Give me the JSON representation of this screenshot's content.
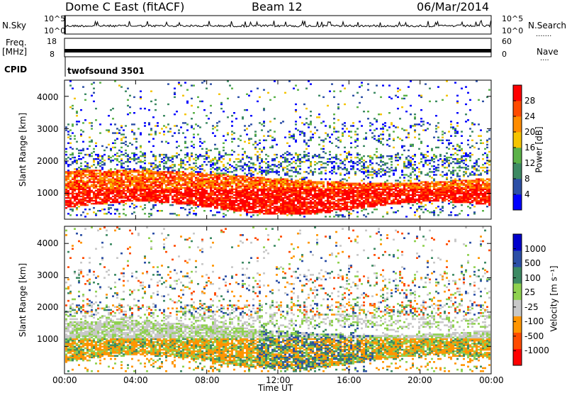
{
  "header": {
    "station": "Dome C East (fitACF)",
    "beam": "Beam 12",
    "date": "06/Mar/2014"
  },
  "top_panels": {
    "nsky_label": "N.Sky",
    "nsearch_label": "N.Search",
    "freq_label_line1": "Freq.",
    "freq_label_line2": "[MHz]",
    "nave_label": "Nave",
    "cpid_label": "CPID",
    "nsky_ticks": [
      "10^5",
      "10^0"
    ],
    "nsearch_ticks": [
      "10^5",
      "10^0"
    ],
    "freq_ticks": [
      "18",
      "8"
    ],
    "nave_ticks": [
      "60",
      "0"
    ],
    "cpid_value": "twofsound 3501"
  },
  "colors": {
    "power_scale": [
      "#0000ff",
      "#2c4fa6",
      "#3d8a63",
      "#5bb248",
      "#f5c400",
      "#ff8c00",
      "#ff4b00",
      "#ff0000"
    ],
    "velocity_scale": [
      "#ff0000",
      "#ff4b00",
      "#ff9500",
      "#c8c8c8",
      "#8fd14f",
      "#3d8a63",
      "#2c4fa6",
      "#0000cc"
    ]
  },
  "chart_data": [
    {
      "type": "heatmap",
      "ylabel": "Slant Range [km]",
      "yticks": [
        "1000",
        "2000",
        "3000",
        "4000"
      ],
      "ylim": [
        200,
        4500
      ],
      "xlim": [
        "00:00",
        "24:00"
      ],
      "colorbar_label": "Power [dB]",
      "colorbar_ticks": [
        "4",
        "8",
        "12",
        "16",
        "20",
        "24",
        "28"
      ],
      "colorbar_range": [
        0,
        32
      ]
    },
    {
      "type": "heatmap",
      "ylabel": "Slant Range [km]",
      "yticks": [
        "1000",
        "2000",
        "3000",
        "4000"
      ],
      "ylim": [
        200,
        4500
      ],
      "xlabel": "Time UT",
      "xticks": [
        "00:00",
        "04:00",
        "08:00",
        "12:00",
        "16:00",
        "20:00",
        "00:00"
      ],
      "colorbar_label": "Velocity [m s⁻¹]",
      "colorbar_ticks": [
        "1000",
        "500",
        "100",
        "25",
        "-25",
        "-100",
        "-500",
        "-1000"
      ]
    }
  ]
}
